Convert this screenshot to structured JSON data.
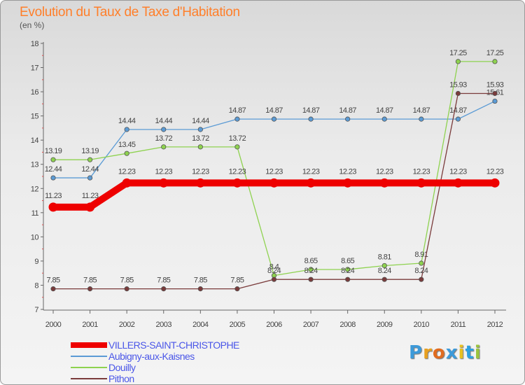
{
  "title": "Evolution du Taux de Taxe d'Habitation",
  "subtitle": "(en %)",
  "logo": {
    "letters": [
      "P",
      "r",
      "o",
      "x",
      "i",
      "t",
      "i"
    ],
    "colors": [
      "#3d9ad9",
      "#e8a020",
      "#e06b1f",
      "#3d9ad9",
      "#e8c020",
      "#2da0e0",
      "#9ac43c"
    ]
  },
  "chart_data": {
    "type": "line",
    "x": [
      "2000",
      "2001",
      "2002",
      "2003",
      "2004",
      "2005",
      "2006",
      "2007",
      "2008",
      "2009",
      "2010",
      "2011",
      "2012"
    ],
    "ylim": [
      7,
      18
    ],
    "yticks": [
      "7",
      "8",
      "9",
      "10",
      "11",
      "12",
      "13",
      "14",
      "15",
      "16",
      "17",
      "18"
    ],
    "grid": false,
    "legend_position": "bottom-left",
    "series": [
      {
        "name": "Aubigny-aux-Kaisnes",
        "color": "#5b9bd5",
        "values": [
          12.44,
          12.44,
          14.44,
          14.44,
          14.44,
          14.87,
          14.87,
          14.87,
          14.87,
          14.87,
          14.87,
          14.87,
          15.61
        ],
        "labels": [
          "12.44",
          "12.44",
          "14.44",
          "14.44",
          "14.44",
          "14.87",
          "14.87",
          "14.87",
          "14.87",
          "14.87",
          "14.87",
          "14.87",
          "15.61"
        ]
      },
      {
        "name": "Douilly",
        "color": "#8ed24f",
        "values": [
          13.19,
          13.19,
          13.45,
          13.72,
          13.72,
          13.72,
          8.4,
          8.65,
          8.65,
          8.81,
          8.91,
          17.25,
          17.25
        ],
        "labels": [
          "13.19",
          "13.19",
          "13.45",
          "13.72",
          "13.72",
          "13.72",
          "8.4",
          "8.65",
          "8.65",
          "8.81",
          "8.91",
          "17.25",
          "17.25"
        ]
      },
      {
        "name": "Pithon",
        "color": "#7a3b3b",
        "values": [
          7.85,
          7.85,
          7.85,
          7.85,
          7.85,
          7.85,
          8.24,
          8.24,
          8.24,
          8.24,
          8.24,
          15.93,
          15.93
        ],
        "labels": [
          "7.85",
          "7.85",
          "7.85",
          "7.85",
          "7.85",
          "7.85",
          "8.24",
          "8.24",
          "8.24",
          "8.24",
          "8.24",
          "15.93",
          "15.93"
        ]
      },
      {
        "name": "VILLERS-SAINT-CHRISTOPHE",
        "color": "#ee0000",
        "values": [
          11.23,
          11.23,
          12.23,
          12.23,
          12.23,
          12.23,
          12.23,
          12.23,
          12.23,
          12.23,
          12.23,
          12.23,
          12.23
        ],
        "labels": [
          "11.23",
          "11.23",
          "12.23",
          "12.23",
          "12.23",
          "12.23",
          "12.23",
          "12.23",
          "12.23",
          "12.23",
          "12.23",
          "12.23",
          "12.23"
        ]
      }
    ],
    "legend": [
      {
        "name": "VILLERS-SAINT-CHRISTOPHE",
        "color": "#ee0000",
        "text_color": "#4a56e8"
      },
      {
        "name": "Aubigny-aux-Kaisnes",
        "color": "#5b9bd5",
        "text_color": "#4a56e8"
      },
      {
        "name": "Douilly",
        "color": "#8ed24f",
        "text_color": "#4a56e8"
      },
      {
        "name": "Pithon",
        "color": "#7a3b3b",
        "text_color": "#4a56e8"
      }
    ]
  }
}
